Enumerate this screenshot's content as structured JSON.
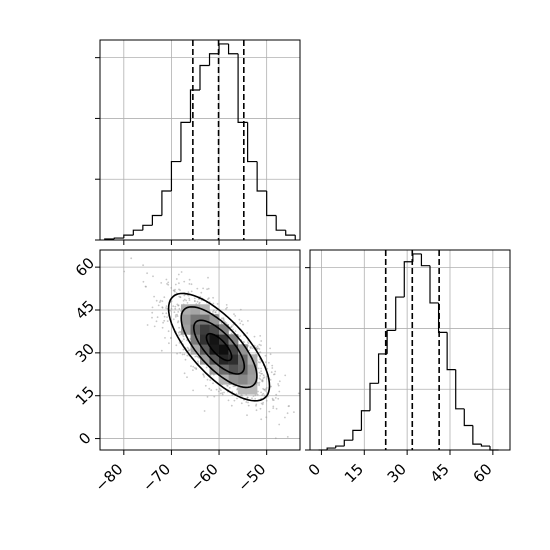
{
  "chart_data": {
    "type": "corner",
    "panels": [
      {
        "name": "x-marginal",
        "type": "histogram",
        "x_range": [
          -85,
          -43
        ],
        "x_ticks": [
          -80,
          -70,
          -60,
          -50
        ],
        "y_range": [
          0,
          1.02
        ],
        "y_ticks": [
          0,
          0.31,
          0.62,
          0.93
        ],
        "bin_edges": [
          -84,
          -82,
          -80,
          -78,
          -76,
          -74,
          -72,
          -70,
          -68,
          -66,
          -64,
          -62,
          -60,
          -58,
          -56,
          -54,
          -52,
          -50,
          -48,
          -46,
          -44
        ],
        "counts": [
          0.005,
          0.01,
          0.025,
          0.05,
          0.075,
          0.125,
          0.25,
          0.4,
          0.6,
          0.765,
          0.89,
          0.95,
          1.0,
          0.95,
          0.6,
          0.4,
          0.25,
          0.125,
          0.05,
          0.025,
          0.0
        ],
        "quantiles": [
          -65.5,
          -60.1,
          -54.8
        ]
      },
      {
        "name": "y-marginal",
        "type": "histogram",
        "x_range": [
          -4,
          66
        ],
        "x_ticks": [
          0,
          15,
          30,
          45,
          60
        ],
        "y_range": [
          0,
          1.02
        ],
        "y_ticks": [
          0,
          0.31,
          0.62,
          0.93
        ],
        "bin_edges": [
          -1,
          2,
          5,
          8,
          11,
          14,
          17,
          20,
          23,
          26,
          29,
          32,
          35,
          38,
          41,
          44,
          47,
          50,
          53,
          56,
          59,
          62
        ],
        "counts": [
          0.0,
          0.01,
          0.02,
          0.05,
          0.1,
          0.2,
          0.34,
          0.49,
          0.61,
          0.78,
          0.96,
          1.0,
          0.94,
          0.75,
          0.6,
          0.41,
          0.21,
          0.125,
          0.03,
          0.02,
          0.0
        ],
        "quantiles": [
          22.5,
          31.8,
          41.2
        ]
      },
      {
        "name": "joint",
        "type": "scatter-density",
        "x_range": [
          -85,
          -43
        ],
        "x_ticks": [
          -80,
          -70,
          -60,
          -50
        ],
        "y_range": [
          -4,
          66
        ],
        "y_ticks": [
          0,
          15,
          30,
          45,
          60
        ],
        "center": [
          -60,
          32
        ],
        "sigma_x": 5.3,
        "sigma_y": 9.4,
        "rho": -0.72,
        "contour_levels_sigma": [
          0.5,
          1.0,
          1.5,
          2.0
        ]
      }
    ],
    "tick_labels": {
      "x1": [
        "−80",
        "−70",
        "−60",
        "−50"
      ],
      "x2": [
        "0",
        "15",
        "30",
        "45",
        "60"
      ],
      "y": [
        "0",
        "15",
        "30",
        "45",
        "60"
      ]
    },
    "grid": true,
    "colors": {
      "line": "#000000",
      "grid": "#b0b0b0",
      "scatter": "#9a9a9a"
    }
  }
}
